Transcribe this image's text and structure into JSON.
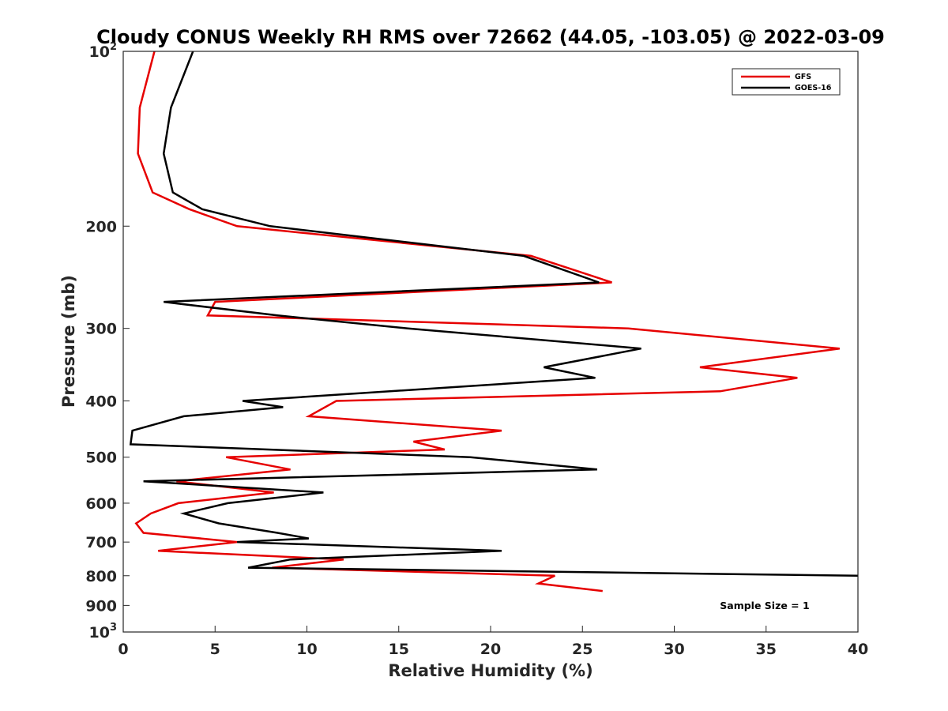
{
  "chart_data": {
    "type": "line",
    "title": "Cloudy CONUS Weekly RH RMS over 72662 (44.05, -103.05) @ 2022-03-09",
    "xlabel": "Relative Humidity (%)",
    "ylabel": "Pressure (mb)",
    "xlim": [
      0,
      40
    ],
    "ylim": [
      100,
      1000
    ],
    "yscale": "log",
    "y_reversed": true,
    "grid": false,
    "legend_position": "top-right",
    "x_ticks": [
      0,
      5,
      10,
      15,
      20,
      25,
      30,
      35,
      40
    ],
    "x_tick_labels": [
      "0",
      "5",
      "10",
      "15",
      "20",
      "25",
      "30",
      "35",
      "40"
    ],
    "y_ticks": [
      100,
      200,
      300,
      400,
      500,
      600,
      700,
      800,
      900,
      1000
    ],
    "y_tick_labels": [
      {
        "base": "10",
        "sup": "2"
      },
      {
        "base": "200",
        "sup": ""
      },
      {
        "base": "300",
        "sup": ""
      },
      {
        "base": "400",
        "sup": ""
      },
      {
        "base": "500",
        "sup": ""
      },
      {
        "base": "600",
        "sup": ""
      },
      {
        "base": "700",
        "sup": ""
      },
      {
        "base": "800",
        "sup": ""
      },
      {
        "base": "900",
        "sup": ""
      },
      {
        "base": "10",
        "sup": "3"
      }
    ],
    "annotation": "Sample Size = 1",
    "series": [
      {
        "name": "GFS",
        "color": "#e60000",
        "points": [
          [
            1.7,
            100
          ],
          [
            0.9,
            125
          ],
          [
            0.8,
            150
          ],
          [
            1.6,
            175
          ],
          [
            3.6,
            187
          ],
          [
            6.2,
            200
          ],
          [
            22.2,
            225
          ],
          [
            26.6,
            250
          ],
          [
            5.0,
            270
          ],
          [
            4.6,
            285
          ],
          [
            27.5,
            300
          ],
          [
            39.0,
            325
          ],
          [
            31.4,
            350
          ],
          [
            36.7,
            365
          ],
          [
            32.5,
            385
          ],
          [
            11.6,
            400
          ],
          [
            10.1,
            425
          ],
          [
            20.6,
            450
          ],
          [
            15.8,
            470
          ],
          [
            17.5,
            485
          ],
          [
            5.6,
            500
          ],
          [
            9.1,
            525
          ],
          [
            2.9,
            550
          ],
          [
            8.2,
            575
          ],
          [
            3.0,
            600
          ],
          [
            1.5,
            625
          ],
          [
            0.7,
            650
          ],
          [
            1.1,
            675
          ],
          [
            6.2,
            700
          ],
          [
            1.9,
            725
          ],
          [
            12.0,
            750
          ],
          [
            8.1,
            775
          ],
          [
            23.5,
            800
          ],
          [
            22.6,
            825
          ],
          [
            26.1,
            850
          ]
        ]
      },
      {
        "name": "GOES-16",
        "color": "#000000",
        "points": [
          [
            3.8,
            100
          ],
          [
            2.6,
            125
          ],
          [
            2.2,
            150
          ],
          [
            2.7,
            175
          ],
          [
            4.3,
            187
          ],
          [
            8.0,
            200
          ],
          [
            21.8,
            225
          ],
          [
            25.9,
            250
          ],
          [
            2.2,
            270
          ],
          [
            8.4,
            285
          ],
          [
            15.5,
            300
          ],
          [
            28.2,
            325
          ],
          [
            22.9,
            350
          ],
          [
            25.7,
            365
          ],
          [
            6.5,
            400
          ],
          [
            8.7,
            410
          ],
          [
            3.3,
            425
          ],
          [
            0.5,
            450
          ],
          [
            0.4,
            475
          ],
          [
            18.9,
            500
          ],
          [
            25.8,
            525
          ],
          [
            1.1,
            550
          ],
          [
            10.9,
            575
          ],
          [
            5.7,
            600
          ],
          [
            3.3,
            625
          ],
          [
            5.2,
            650
          ],
          [
            8.4,
            675
          ],
          [
            10.1,
            690
          ],
          [
            6.2,
            700
          ],
          [
            20.6,
            725
          ],
          [
            9.1,
            750
          ],
          [
            6.8,
            775
          ],
          [
            40.0,
            800
          ]
        ]
      }
    ]
  }
}
